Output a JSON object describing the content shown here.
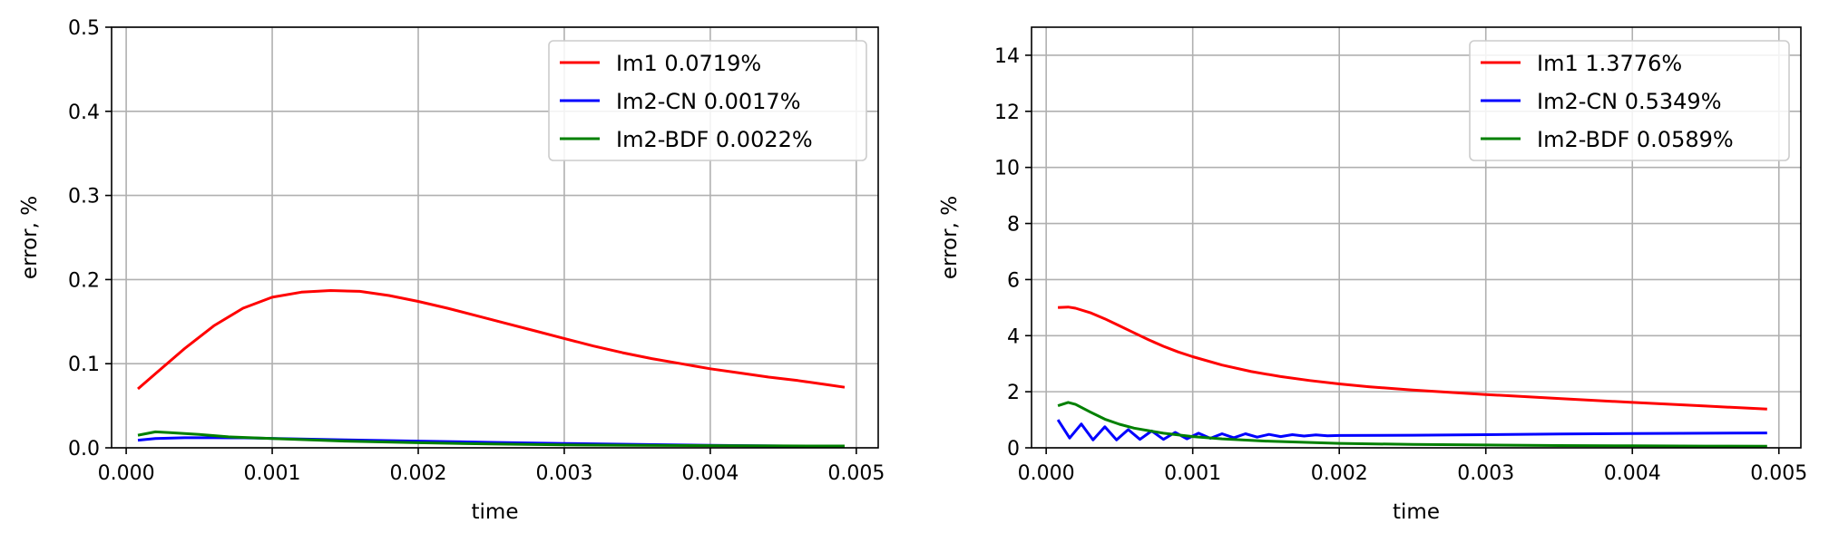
{
  "chart_data": [
    {
      "type": "line",
      "xlabel": "time",
      "ylabel": "error, %",
      "xlim": [
        -0.0001,
        0.00515
      ],
      "ylim": [
        0,
        0.5
      ],
      "xticks": [
        0.0,
        0.001,
        0.002,
        0.003,
        0.004,
        0.005
      ],
      "xtick_labels": [
        "0.000",
        "0.001",
        "0.002",
        "0.003",
        "0.004",
        "0.005"
      ],
      "yticks": [
        0.0,
        0.1,
        0.2,
        0.3,
        0.4,
        0.5
      ],
      "ytick_labels": [
        "0.0",
        "0.1",
        "0.2",
        "0.3",
        "0.4",
        "0.5"
      ],
      "grid": true,
      "legend_position": "top-right",
      "series": [
        {
          "name": "Im1 0.0719%",
          "color": "#ff0000",
          "x": [
            8e-05,
            0.0002,
            0.0004,
            0.0006,
            0.0008,
            0.001,
            0.0012,
            0.0014,
            0.0016,
            0.0018,
            0.002,
            0.0022,
            0.0024,
            0.0026,
            0.0028,
            0.003,
            0.0032,
            0.0034,
            0.0036,
            0.0038,
            0.004,
            0.0042,
            0.0044,
            0.0046,
            0.0048,
            0.00492
          ],
          "y": [
            0.07,
            0.088,
            0.118,
            0.145,
            0.166,
            0.179,
            0.185,
            0.187,
            0.186,
            0.181,
            0.174,
            0.166,
            0.157,
            0.148,
            0.139,
            0.13,
            0.121,
            0.113,
            0.106,
            0.1,
            0.094,
            0.089,
            0.084,
            0.08,
            0.075,
            0.072
          ]
        },
        {
          "name": "Im2-CN 0.0017%",
          "color": "#0000ff",
          "x": [
            8e-05,
            0.0002,
            0.0004,
            0.0006,
            0.0008,
            0.001,
            0.0015,
            0.002,
            0.0025,
            0.003,
            0.0035,
            0.004,
            0.0045,
            0.00492
          ],
          "y": [
            0.009,
            0.011,
            0.012,
            0.012,
            0.0118,
            0.0112,
            0.0095,
            0.008,
            0.0065,
            0.0052,
            0.004,
            0.003,
            0.0022,
            0.0017
          ]
        },
        {
          "name": "Im2-BDF 0.0022%",
          "color": "#008000",
          "x": [
            8e-05,
            0.0002,
            0.0003,
            0.0005,
            0.0007,
            0.001,
            0.0015,
            0.002,
            0.0025,
            0.003,
            0.0035,
            0.004,
            0.0045,
            0.00492
          ],
          "y": [
            0.015,
            0.019,
            0.018,
            0.016,
            0.013,
            0.011,
            0.008,
            0.006,
            0.0045,
            0.0035,
            0.003,
            0.0026,
            0.0023,
            0.0022
          ]
        }
      ]
    },
    {
      "type": "line",
      "xlabel": "time",
      "ylabel": "error, %",
      "xlim": [
        -0.0001,
        0.00515
      ],
      "ylim": [
        0,
        15
      ],
      "xticks": [
        0.0,
        0.001,
        0.002,
        0.003,
        0.004,
        0.005
      ],
      "xtick_labels": [
        "0.000",
        "0.001",
        "0.002",
        "0.003",
        "0.004",
        "0.005"
      ],
      "yticks": [
        0,
        2,
        4,
        6,
        8,
        10,
        12,
        14
      ],
      "ytick_labels": [
        "0",
        "2",
        "4",
        "6",
        "8",
        "10",
        "12",
        "14"
      ],
      "grid": true,
      "legend_position": "top-right",
      "series": [
        {
          "name": "Im1 1.3776%",
          "color": "#ff0000",
          "x": [
            8e-05,
            0.00015,
            0.0002,
            0.0003,
            0.0004,
            0.0005,
            0.0006,
            0.0007,
            0.0008,
            0.0009,
            0.001,
            0.0012,
            0.0014,
            0.0016,
            0.0018,
            0.002,
            0.0022,
            0.0025,
            0.003,
            0.0035,
            0.004,
            0.0045,
            0.00492
          ],
          "y": [
            5.0,
            5.02,
            4.98,
            4.82,
            4.6,
            4.35,
            4.1,
            3.85,
            3.62,
            3.42,
            3.25,
            2.95,
            2.72,
            2.54,
            2.4,
            2.28,
            2.18,
            2.06,
            1.9,
            1.76,
            1.62,
            1.49,
            1.38
          ]
        },
        {
          "name": "Im2-CN 0.5349%",
          "color": "#0000ff",
          "x": [
            8e-05,
            0.00016,
            0.00024,
            0.00032,
            0.0004,
            0.00048,
            0.00056,
            0.00064,
            0.00072,
            0.0008,
            0.00088,
            0.00096,
            0.00104,
            0.00112,
            0.0012,
            0.00128,
            0.00136,
            0.00144,
            0.00152,
            0.0016,
            0.00168,
            0.00176,
            0.00184,
            0.00192,
            0.002,
            0.0025,
            0.003,
            0.0035,
            0.004,
            0.0045,
            0.00492
          ],
          "y": [
            1.0,
            0.35,
            0.85,
            0.28,
            0.75,
            0.28,
            0.65,
            0.3,
            0.6,
            0.3,
            0.55,
            0.32,
            0.52,
            0.34,
            0.5,
            0.36,
            0.5,
            0.38,
            0.48,
            0.4,
            0.47,
            0.42,
            0.46,
            0.43,
            0.44,
            0.45,
            0.47,
            0.49,
            0.51,
            0.52,
            0.53
          ]
        },
        {
          "name": "Im2-BDF 0.0589%",
          "color": "#008000",
          "x": [
            8e-05,
            0.00015,
            0.0002,
            0.0003,
            0.0004,
            0.0005,
            0.0006,
            0.0008,
            0.001,
            0.0012,
            0.0015,
            0.002,
            0.0025,
            0.003,
            0.0035,
            0.004,
            0.0045,
            0.00492
          ],
          "y": [
            1.5,
            1.62,
            1.55,
            1.28,
            1.02,
            0.84,
            0.7,
            0.52,
            0.4,
            0.32,
            0.24,
            0.16,
            0.12,
            0.1,
            0.08,
            0.07,
            0.062,
            0.059
          ]
        }
      ]
    }
  ]
}
